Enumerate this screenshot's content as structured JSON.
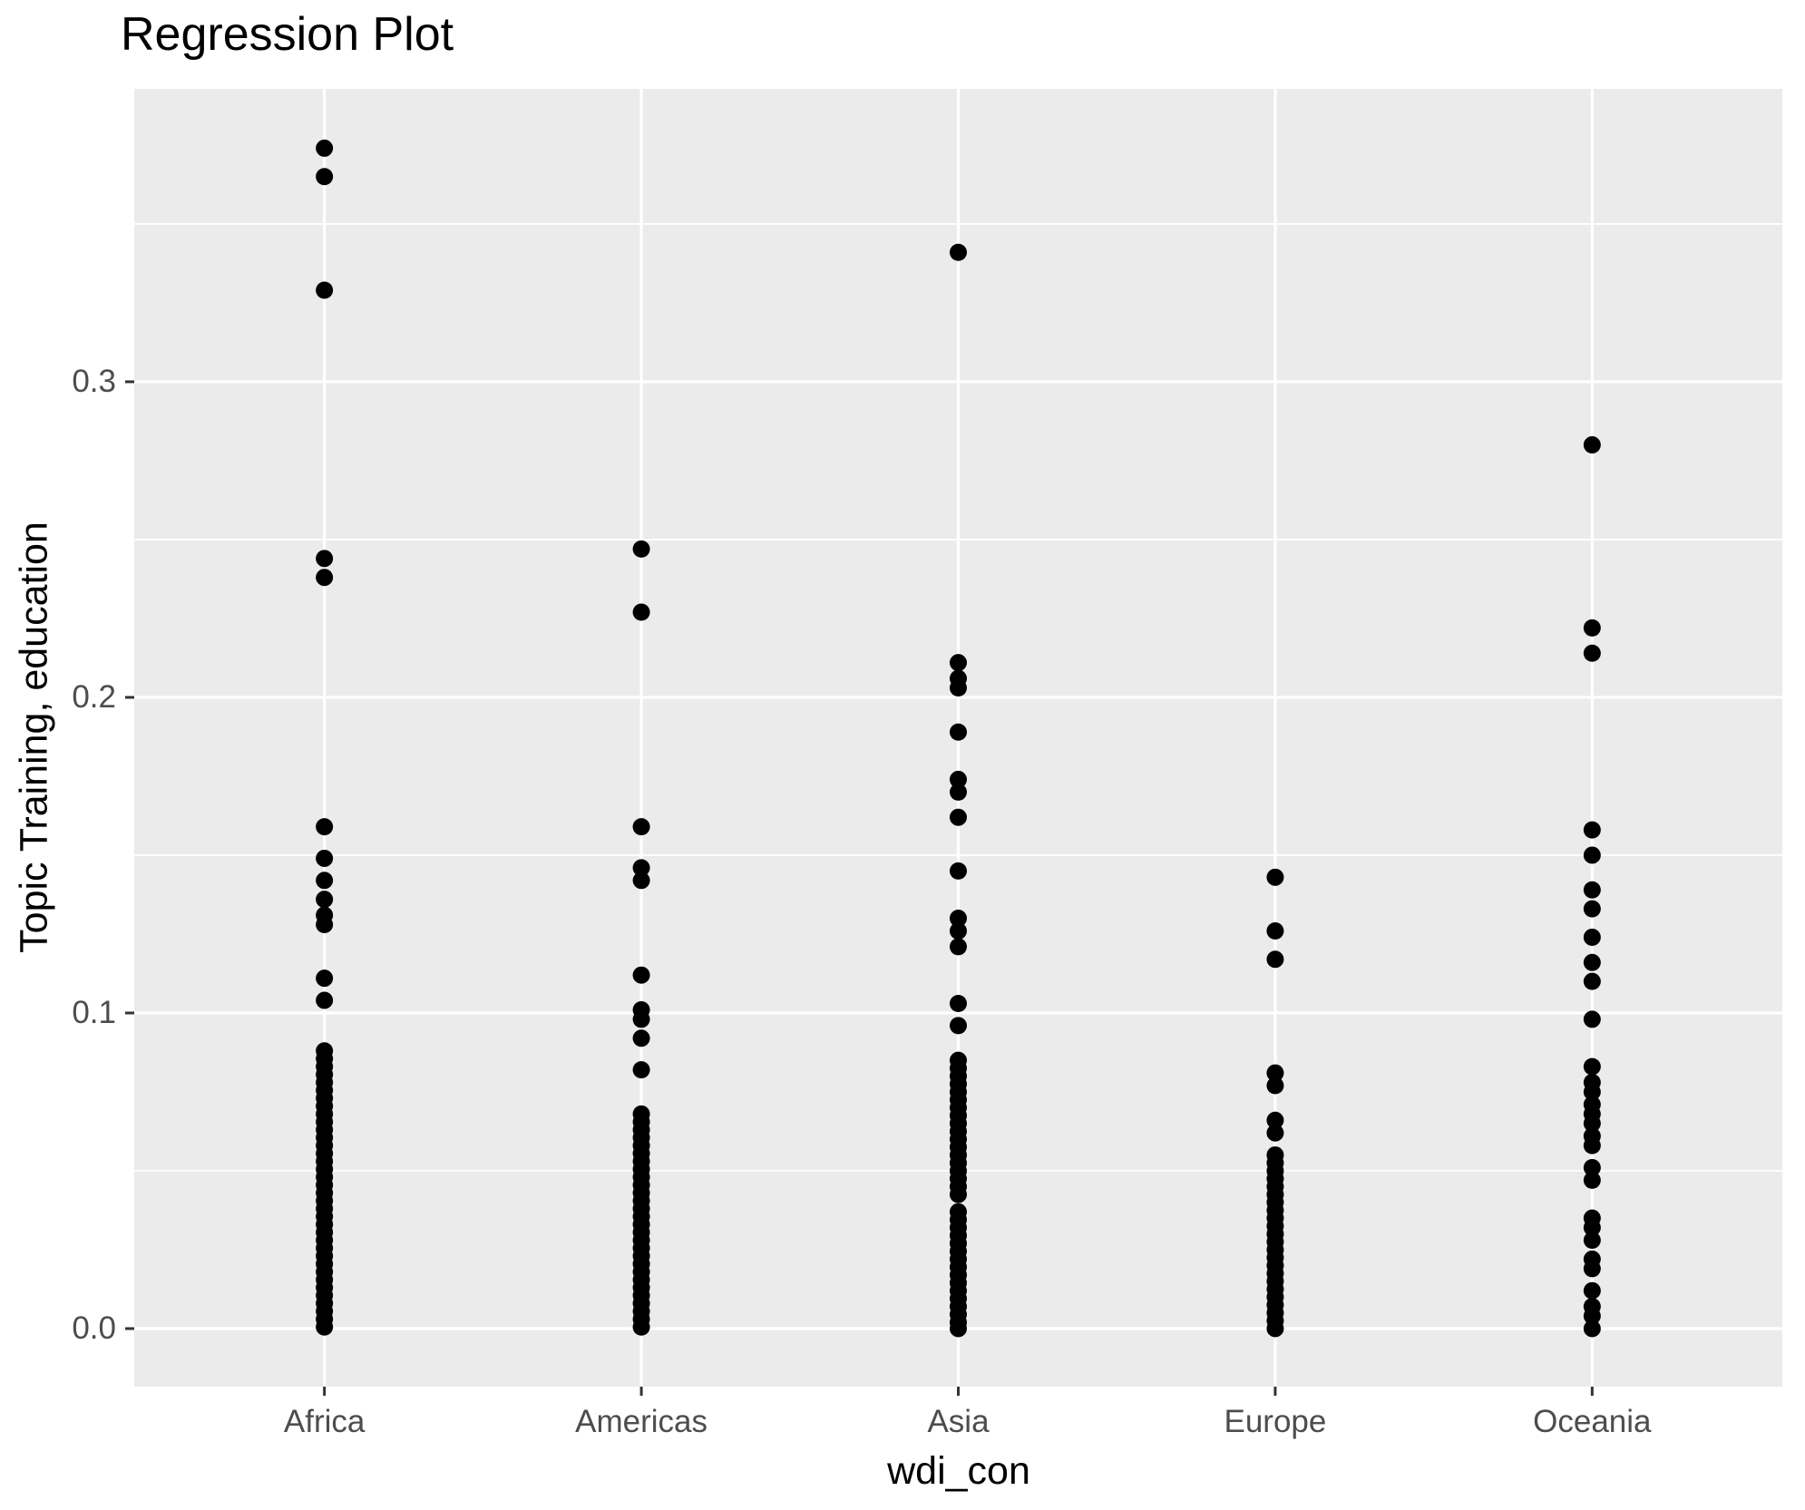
{
  "chart_data": {
    "type": "scatter",
    "title": "Regression Plot",
    "xlabel": "wdi_con",
    "ylabel": "Topic Training, education",
    "categories": [
      "Africa",
      "Americas",
      "Asia",
      "Europe",
      "Oceania"
    ],
    "y_ticks": {
      "labels": [
        "0.0",
        "0.1",
        "0.2",
        "0.3"
      ],
      "values": [
        0.0,
        0.1,
        0.2,
        0.3
      ]
    },
    "y_minor_ticks": [
      0.05,
      0.15,
      0.25,
      0.35
    ],
    "ylim": [
      -0.0184,
      0.3928
    ],
    "grid": "major-and-minor-horizontal, major-vertical-at-categories",
    "legend": "none",
    "style": {
      "panel_bg": "#EBEBEB",
      "grid_color": "#FFFFFF",
      "tick_mark_color": "#333333",
      "tick_label_color": "#4D4D4D",
      "axis_title_color": "#000000",
      "title_color": "#000000",
      "point_color": "#000000"
    },
    "series": [
      {
        "name": "Africa",
        "values": [
          0.374,
          0.365,
          0.329,
          0.244,
          0.238,
          0.159,
          0.149,
          0.142,
          0.136,
          0.131,
          0.128,
          0.111,
          0.104,
          0.088,
          0.0855,
          0.083,
          0.0805,
          0.078,
          0.0755,
          0.073,
          0.0705,
          0.068,
          0.0655,
          0.063,
          0.0605,
          0.058,
          0.0555,
          0.053,
          0.0505,
          0.048,
          0.0455,
          0.043,
          0.0405,
          0.038,
          0.0355,
          0.033,
          0.0305,
          0.028,
          0.0255,
          0.023,
          0.0205,
          0.018,
          0.0155,
          0.013,
          0.0105,
          0.008,
          0.0055,
          0.003,
          0.0005
        ]
      },
      {
        "name": "Americas",
        "values": [
          0.247,
          0.227,
          0.159,
          0.146,
          0.142,
          0.112,
          0.101,
          0.098,
          0.092,
          0.082,
          0.068,
          0.0655,
          0.063,
          0.0605,
          0.058,
          0.0555,
          0.053,
          0.0505,
          0.048,
          0.0455,
          0.043,
          0.0405,
          0.038,
          0.0355,
          0.033,
          0.0305,
          0.028,
          0.0255,
          0.023,
          0.0205,
          0.018,
          0.0155,
          0.013,
          0.0105,
          0.008,
          0.0055,
          0.003,
          0.0005
        ]
      },
      {
        "name": "Asia",
        "values": [
          0.341,
          0.211,
          0.206,
          0.203,
          0.189,
          0.174,
          0.17,
          0.162,
          0.145,
          0.13,
          0.126,
          0.121,
          0.103,
          0.096,
          0.085,
          0.0825,
          0.08,
          0.0775,
          0.075,
          0.0725,
          0.07,
          0.0675,
          0.065,
          0.0625,
          0.06,
          0.0575,
          0.055,
          0.0525,
          0.05,
          0.0475,
          0.045,
          0.0425,
          0.037,
          0.0345,
          0.032,
          0.0295,
          0.027,
          0.0245,
          0.022,
          0.0195,
          0.017,
          0.0145,
          0.012,
          0.0095,
          0.007,
          0.0045,
          0.002,
          0.0
        ]
      },
      {
        "name": "Europe",
        "values": [
          0.143,
          0.126,
          0.117,
          0.081,
          0.077,
          0.066,
          0.062,
          0.055,
          0.0525,
          0.05,
          0.0475,
          0.045,
          0.0425,
          0.04,
          0.0375,
          0.035,
          0.0325,
          0.03,
          0.0275,
          0.025,
          0.0225,
          0.02,
          0.0175,
          0.015,
          0.0125,
          0.01,
          0.0075,
          0.005,
          0.0025,
          0.0
        ]
      },
      {
        "name": "Oceania",
        "values": [
          0.28,
          0.222,
          0.214,
          0.158,
          0.15,
          0.139,
          0.133,
          0.124,
          0.116,
          0.11,
          0.098,
          0.083,
          0.078,
          0.075,
          0.071,
          0.068,
          0.065,
          0.061,
          0.058,
          0.051,
          0.047,
          0.035,
          0.032,
          0.028,
          0.022,
          0.019,
          0.012,
          0.007,
          0.004,
          0.0
        ]
      }
    ]
  }
}
